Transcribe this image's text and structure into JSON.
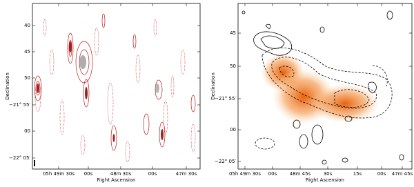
{
  "panels": [
    {
      "xlabel": "Right Ascension",
      "ylabel": "Declination",
      "xticks": [
        "05h 49m 30s",
        "00s",
        "48m 30s",
        "00s",
        "47m 30s"
      ],
      "yticks": [
        "40",
        "45",
        "50",
        "−21° 55′",
        "00",
        "−22° 05′"
      ]
    },
    {
      "xlabel": "Right Ascension",
      "ylabel": "Declination",
      "xticks": [
        "05h 49m 30s",
        "00s",
        "48m 45s",
        "30s",
        "15s",
        "00s",
        "47m 45s"
      ],
      "yticks": [
        "45",
        "50",
        "−21° 55′",
        "00",
        "−22° 05′"
      ]
    }
  ]
}
